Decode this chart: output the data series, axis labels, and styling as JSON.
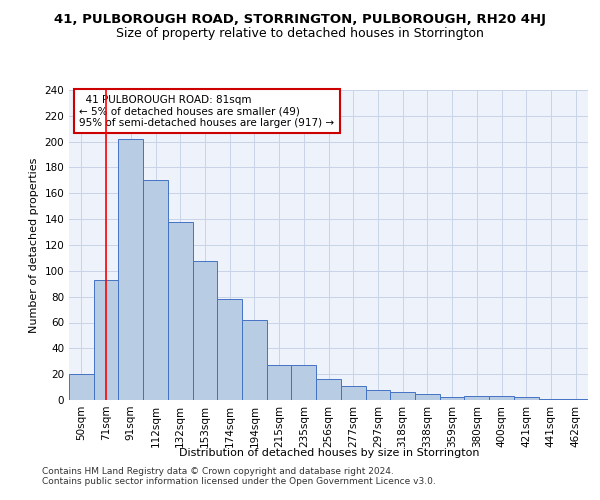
{
  "title": "41, PULBOROUGH ROAD, STORRINGTON, PULBOROUGH, RH20 4HJ",
  "subtitle": "Size of property relative to detached houses in Storrington",
  "xlabel": "Distribution of detached houses by size in Storrington",
  "ylabel": "Number of detached properties",
  "categories": [
    "50sqm",
    "71sqm",
    "91sqm",
    "112sqm",
    "132sqm",
    "153sqm",
    "174sqm",
    "194sqm",
    "215sqm",
    "235sqm",
    "256sqm",
    "277sqm",
    "297sqm",
    "318sqm",
    "338sqm",
    "359sqm",
    "380sqm",
    "400sqm",
    "421sqm",
    "441sqm",
    "462sqm"
  ],
  "values": [
    20,
    93,
    202,
    170,
    138,
    108,
    78,
    62,
    27,
    27,
    16,
    11,
    8,
    6,
    5,
    2,
    3,
    3,
    2,
    1,
    1
  ],
  "bar_color": "#b8cce4",
  "bar_edge_color": "#4472c4",
  "grid_color": "#c8d4e8",
  "background_color": "#eef2fa",
  "red_line_x": 1.0,
  "annotation_text": "  41 PULBOROUGH ROAD: 81sqm\n← 5% of detached houses are smaller (49)\n95% of semi-detached houses are larger (917) →",
  "annotation_box_color": "#ffffff",
  "annotation_box_edge_color": "#cc0000",
  "ylim": [
    0,
    240
  ],
  "yticks": [
    0,
    20,
    40,
    60,
    80,
    100,
    120,
    140,
    160,
    180,
    200,
    220,
    240
  ],
  "footer1": "Contains HM Land Registry data © Crown copyright and database right 2024.",
  "footer2": "Contains public sector information licensed under the Open Government Licence v3.0.",
  "title_fontsize": 9.5,
  "subtitle_fontsize": 9,
  "axis_label_fontsize": 8,
  "tick_fontsize": 7.5,
  "annotation_fontsize": 7.5,
  "footer_fontsize": 6.5
}
